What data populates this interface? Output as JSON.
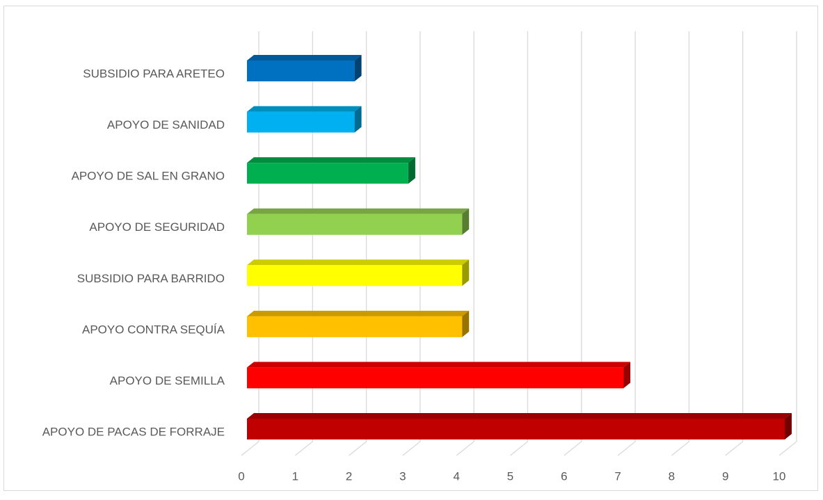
{
  "chart_data": {
    "type": "bar3d_horizontal",
    "categories": [
      "SUBSIDIO PARA ARETEO",
      "APOYO DE SANIDAD",
      "APOYO DE SAL EN GRANO",
      "APOYO DE SEGURIDAD",
      "SUBSIDIO PARA BARRIDO",
      "APOYO CONTRA SEQUÍA",
      "APOYO DE SEMILLA",
      "APOYO DE PACAS DE FORRAJE"
    ],
    "values": [
      2,
      2,
      3,
      4,
      4,
      4,
      7,
      10
    ],
    "colors": [
      "#0070c0",
      "#00b0f0",
      "#00b050",
      "#92d050",
      "#ffff00",
      "#ffc000",
      "#ff0000",
      "#c00000"
    ],
    "xlim": [
      0,
      10
    ],
    "xticks": [
      0,
      1,
      2,
      3,
      4,
      5,
      6,
      7,
      8,
      9,
      10
    ],
    "grid": true
  }
}
